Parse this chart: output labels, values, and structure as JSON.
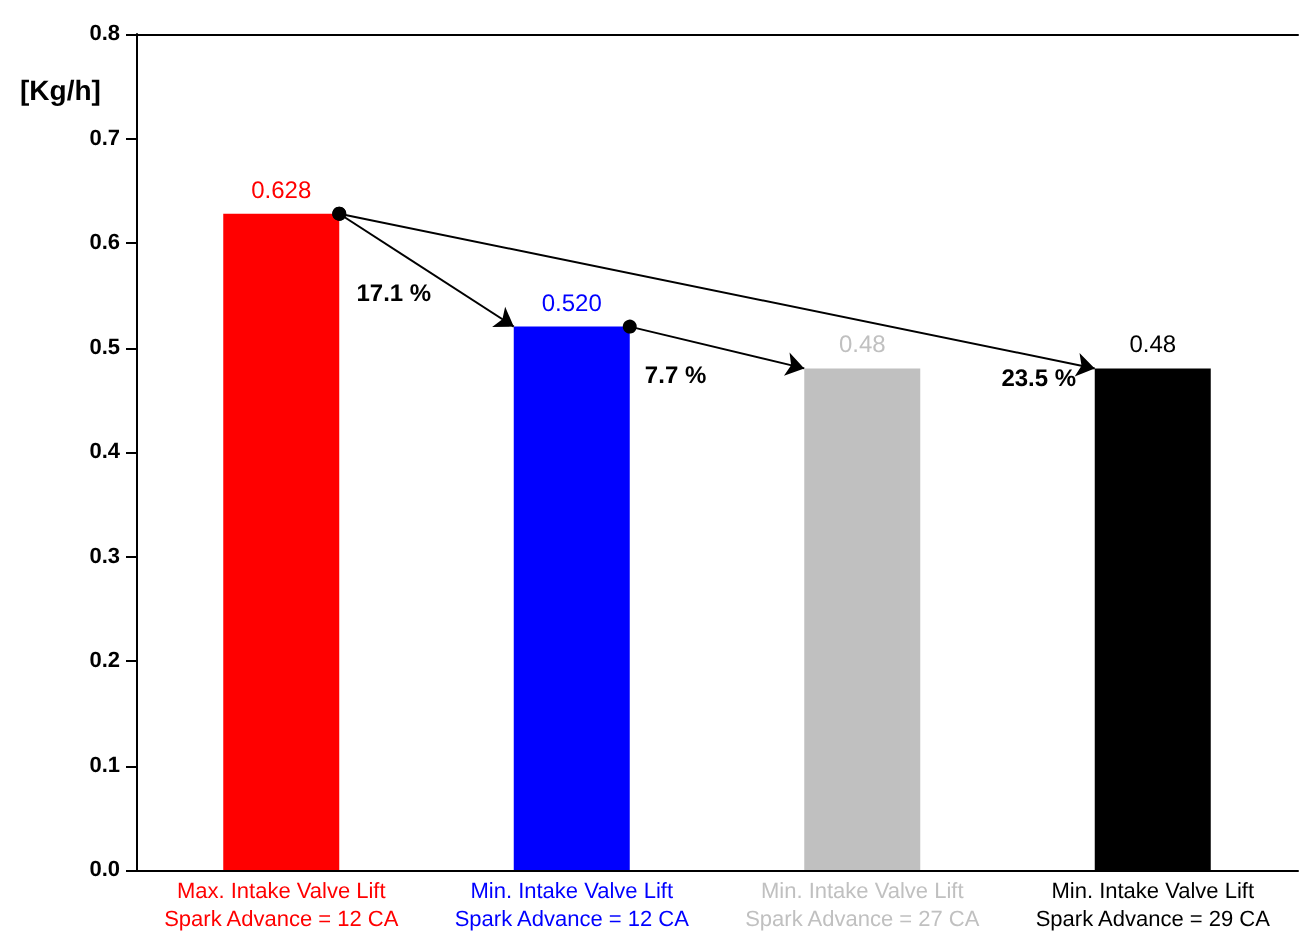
{
  "chart_data": {
    "type": "bar",
    "ylabel": "[Kg/h]",
    "categories": [
      "Max. Intake Valve Lift\nSpark Advance = 12 CA",
      "Min. Intake Valve Lift\nSpark Advance = 12 CA",
      "Min. Intake Valve Lift\nSpark Advance = 27 CA",
      "Min. Intake Valve Lift\nSpark Advance = 29 CA"
    ],
    "values": [
      0.628,
      0.52,
      0.48,
      0.48
    ],
    "colors": [
      "#ff0000",
      "#0000ff",
      "#c0c0c0",
      "#000000"
    ],
    "value_labels": [
      "0.628",
      "0.520",
      "0.48",
      "0.48"
    ],
    "ylim": [
      0,
      0.8
    ],
    "yticks": [
      {
        "value": 0,
        "label": "0.0"
      },
      0.1,
      0.2,
      0.3,
      0.4,
      0.5,
      0.6,
      0.7,
      0.8
    ],
    "annotations": [
      "17.1 %",
      "7.7 %",
      "23.5 %"
    ],
    "grid": false
  }
}
